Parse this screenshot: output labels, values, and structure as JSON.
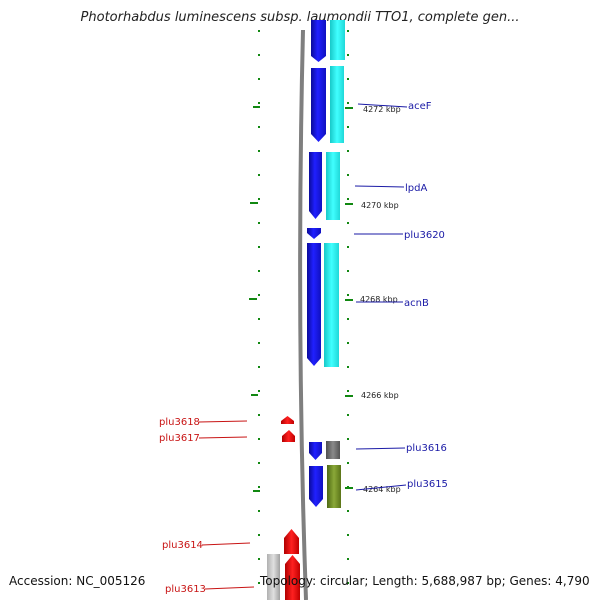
{
  "title": "Photorhabdus luminescens subsp. laumondii TTO1, complete gen...",
  "footer": {
    "accession": "Accession: NC_005126",
    "summary": "Topology: circular; Length: 5,688,987 bp; Genes: 4,790"
  },
  "ticks": [
    {
      "label": "4272 kbp"
    },
    {
      "label": "4270 kbp"
    },
    {
      "label": "4268 kbp"
    },
    {
      "label": "4266 kbp"
    },
    {
      "label": "4264 kbp"
    }
  ],
  "genes_right": [
    {
      "label": "aceF"
    },
    {
      "label": "lpdA"
    },
    {
      "label": "plu3620"
    },
    {
      "label": "acnB"
    },
    {
      "label": "plu3616"
    },
    {
      "label": "plu3615"
    }
  ],
  "genes_left": [
    {
      "label": "plu3618"
    },
    {
      "label": "plu3617"
    },
    {
      "label": "plu3614"
    },
    {
      "label": "plu3613"
    }
  ],
  "colors": {
    "forward_cds": "#1414e6",
    "forward_cds_shadow": "#0a0a90",
    "reverse_cds": "#e61414",
    "cyan_track": "#22e6e6",
    "gray_track": "#707070",
    "olive_track": "#6e8c28",
    "tick_green": "#118811",
    "backbone": "#808080",
    "label_blue": "#1a1aa6",
    "label_red": "#c81414"
  }
}
